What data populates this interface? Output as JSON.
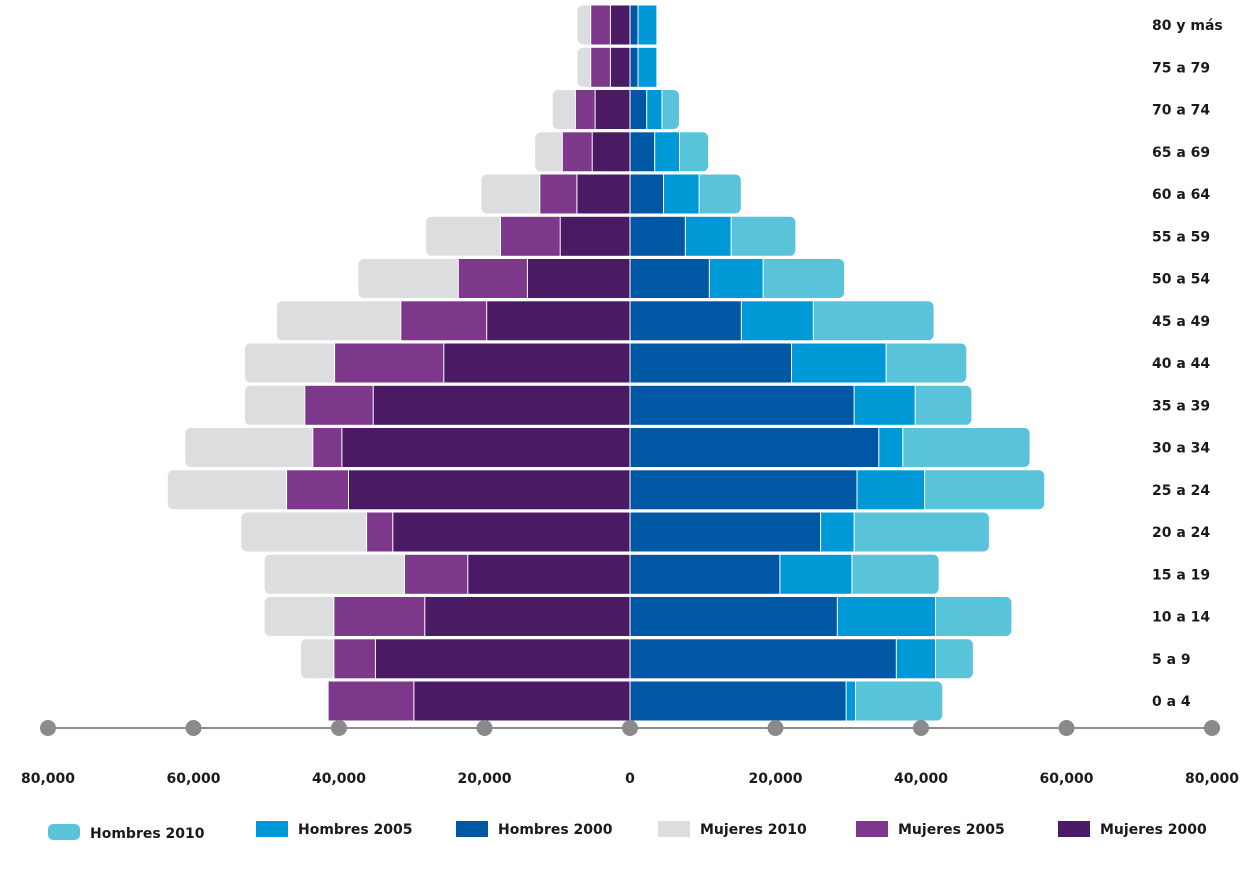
{
  "chart_data": {
    "type": "bar",
    "orientation": "horizontal-diverging",
    "title": "",
    "xlabel": "",
    "ylabel": "",
    "xlim": [
      -80000,
      80000
    ],
    "x_ticks": [
      -80000,
      -60000,
      -40000,
      -20000,
      0,
      20000,
      40000,
      60000,
      80000
    ],
    "x_tick_labels": [
      "80,000",
      "60,000",
      "40,000",
      "20,000",
      "0",
      "20,000",
      "40,000",
      "60,000",
      "80,000"
    ],
    "categories": [
      "0 a 4",
      "5 a 9",
      "10 a 14",
      "15 a 19",
      "20 a 24",
      "25 a 24",
      "30 a 34",
      "35 a 39",
      "40 a 44",
      "45 a 49",
      "50 a 54",
      "55 a 59",
      "60 a 64",
      "65 a 69",
      "70 a 74",
      "75 a 79",
      "80 y más"
    ],
    "grid": false,
    "legend_position": "bottom",
    "series": [
      {
        "name": "Hombres 2010",
        "side": "right",
        "color": "#58c3d9",
        "values": [
          43000,
          47200,
          52500,
          42500,
          49400,
          57000,
          55000,
          47000,
          46300,
          41800,
          29500,
          22800,
          15300,
          10800,
          6800,
          3700,
          3700
        ]
      },
      {
        "name": "Hombres 2005",
        "side": "right",
        "color": "#0099d8",
        "values": [
          31000,
          42000,
          42000,
          30500,
          30800,
          40500,
          37500,
          39200,
          35200,
          25200,
          18300,
          13900,
          9500,
          6800,
          4400,
          3700,
          3700
        ]
      },
      {
        "name": "Hombres 2000",
        "side": "right",
        "color": "#0057a3",
        "values": [
          29700,
          36600,
          28500,
          20600,
          26200,
          31200,
          34200,
          30800,
          22200,
          15300,
          10900,
          7600,
          4600,
          3400,
          2300,
          1100,
          1100
        ]
      },
      {
        "name": "Mujeres 2010",
        "side": "left",
        "color": "#dcdddf",
        "values": [
          41500,
          45300,
          50300,
          50300,
          53500,
          63600,
          61200,
          53000,
          53000,
          48600,
          37400,
          28100,
          20500,
          13100,
          10700,
          7300,
          7300
        ]
      },
      {
        "name": "Mujeres 2005",
        "side": "left",
        "color": "#7d388b",
        "values": [
          41500,
          40700,
          40700,
          31000,
          36200,
          47200,
          43600,
          44700,
          40600,
          31500,
          23600,
          17800,
          12400,
          9300,
          7500,
          5400,
          5400
        ]
      },
      {
        "name": "Mujeres 2000",
        "side": "left",
        "color": "#4a1a64",
        "values": [
          29700,
          35000,
          28200,
          22300,
          32600,
          38700,
          39600,
          35300,
          25600,
          19700,
          14100,
          9600,
          7300,
          5200,
          4800,
          2700,
          2700
        ]
      }
    ]
  }
}
